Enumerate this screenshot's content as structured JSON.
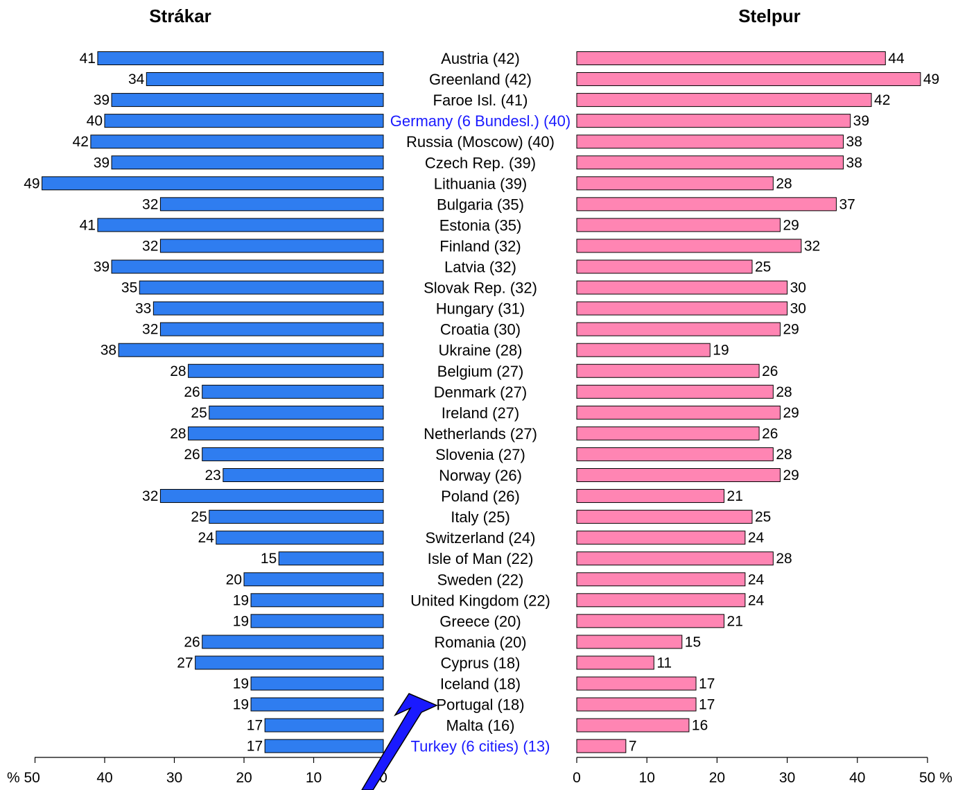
{
  "chart_data": {
    "type": "bar",
    "orientation": "horizontal-butterfly",
    "panels": [
      {
        "title": "Strákar",
        "series": "boys",
        "color": "#2f7df0"
      },
      {
        "title": "Stelpur",
        "series": "girls",
        "color": "#ff85b3"
      }
    ],
    "categories": [
      "Austria (42)",
      "Greenland (42)",
      "Faroe Isl. (41)",
      "Germany (6 Bundesl.) (40)",
      "Russia (Moscow) (40)",
      "Czech Rep. (39)",
      "Lithuania (39)",
      "Bulgaria (35)",
      "Estonia (35)",
      "Finland (32)",
      "Latvia (32)",
      "Slovak Rep. (32)",
      "Hungary (31)",
      "Croatia (30)",
      "Ukraine (28)",
      "Belgium (27)",
      "Denmark (27)",
      "Ireland (27)",
      "Netherlands (27)",
      "Slovenia (27)",
      "Norway (26)",
      "Poland (26)",
      "Italy (25)",
      "Switzerland (24)",
      "Isle of Man (22)",
      "Sweden (22)",
      "United Kingdom (22)",
      "Greece (20)",
      "Romania (20)",
      "Cyprus (18)",
      "Iceland (18)",
      "Portugal (18)",
      "Malta (16)",
      "Turkey (6 cities) (13)"
    ],
    "highlighted": [
      "Germany (6 Bundesl.) (40)",
      "Turkey (6 cities) (13)"
    ],
    "highlight_color": "#1a1aff",
    "series": [
      {
        "values": [
          41,
          34,
          39,
          40,
          42,
          39,
          49,
          32,
          41,
          32,
          39,
          35,
          33,
          32,
          38,
          28,
          26,
          25,
          28,
          26,
          23,
          32,
          25,
          24,
          15,
          20,
          19,
          19,
          26,
          27,
          19,
          19,
          17,
          17
        ]
      },
      {
        "values": [
          44,
          49,
          42,
          39,
          38,
          38,
          28,
          37,
          29,
          32,
          25,
          30,
          30,
          29,
          19,
          26,
          28,
          29,
          26,
          28,
          29,
          21,
          25,
          24,
          28,
          24,
          24,
          21,
          15,
          11,
          17,
          17,
          16,
          7
        ]
      }
    ],
    "left_axis": {
      "ticks": [
        "% 50",
        "40",
        "30",
        "20",
        "10",
        "0"
      ],
      "range": [
        50,
        0
      ]
    },
    "right_axis": {
      "ticks": [
        "0",
        "10",
        "20",
        "30",
        "40",
        "50 %"
      ],
      "range": [
        0,
        50
      ]
    },
    "annotation": {
      "type": "arrow",
      "color": "#1a1aff",
      "points_to": "Iceland (18)"
    }
  }
}
